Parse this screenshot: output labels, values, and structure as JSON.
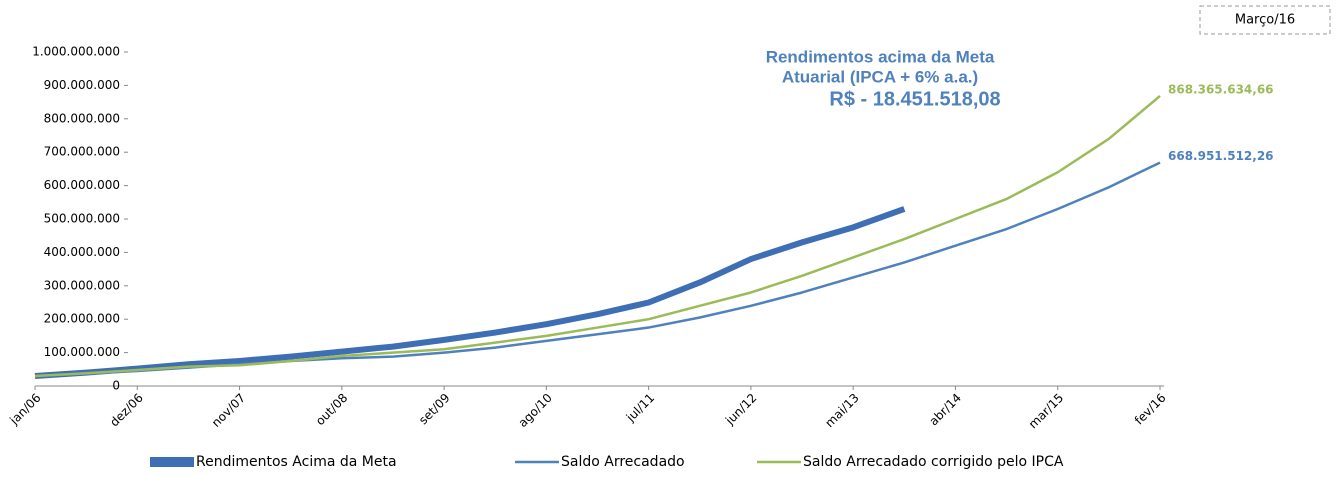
{
  "chart_data": {
    "type": "line",
    "annotations": [
      "Rendimentos acima da Meta",
      "Atuarial (IPCA + 6% a.a.)",
      "R$ - 18.451.518,08"
    ],
    "date_label": "Março/16",
    "categories": [
      "jan/06",
      null,
      "dez/06",
      null,
      "nov/07",
      null,
      "out/08",
      null,
      "set/09",
      null,
      "ago/10",
      null,
      "jul/11",
      null,
      "jun/12",
      null,
      "mai/13",
      null,
      "abr/14",
      null,
      "mar/15",
      null,
      "fev/16"
    ],
    "series": [
      {
        "name": "Rendimentos Acima da Meta",
        "color": "#3e6eb3",
        "values": [
          30000000,
          40000000,
          52000000,
          65000000,
          75000000,
          88000000,
          103000000,
          118000000,
          138000000,
          160000000,
          185000000,
          215000000,
          250000000,
          310000000,
          380000000,
          430000000,
          475000000,
          530000000,
          null,
          null,
          null,
          null,
          null
        ]
      },
      {
        "name": "Saldo Arrecadado",
        "color": "#4f81bd",
        "values": [
          30000000,
          37000000,
          45000000,
          55000000,
          65000000,
          75000000,
          83000000,
          88000000,
          100000000,
          115000000,
          135000000,
          155000000,
          175000000,
          205000000,
          240000000,
          280000000,
          325000000,
          370000000,
          420000000,
          470000000,
          530000000,
          595000000,
          668951512.26
        ],
        "value_labels": [
          null,
          null,
          null,
          null,
          null,
          null,
          null,
          null,
          null,
          null,
          null,
          null,
          null,
          null,
          null,
          null,
          null,
          null,
          null,
          null,
          null,
          null,
          "668.951.512,26"
        ]
      },
      {
        "name": "Saldo Arrecadado corrigido pelo IPCA",
        "color": "#9bbb59",
        "values": [
          30000000,
          38000000,
          48000000,
          58000000,
          62000000,
          75000000,
          90000000,
          100000000,
          110000000,
          130000000,
          150000000,
          175000000,
          200000000,
          240000000,
          280000000,
          330000000,
          385000000,
          440000000,
          500000000,
          560000000,
          640000000,
          740000000,
          868365634.66
        ],
        "value_labels": [
          null,
          null,
          null,
          null,
          null,
          null,
          null,
          null,
          null,
          null,
          null,
          null,
          null,
          null,
          null,
          null,
          null,
          null,
          null,
          null,
          null,
          null,
          "868.365.634,66"
        ]
      }
    ],
    "ylim": [
      0,
      1000000000
    ],
    "yticks": [
      0,
      {
        "value": 100000000,
        "label": "100.000.000"
      },
      {
        "value": 200000000,
        "label": "200.000.000"
      },
      {
        "value": 300000000,
        "label": "300.000.000"
      },
      {
        "value": 400000000,
        "label": "400.000.000"
      },
      {
        "value": 500000000,
        "label": "500.000.000"
      },
      {
        "value": 600000000,
        "label": "600.000.000"
      },
      {
        "value": 700000000,
        "label": "700.000.000"
      },
      {
        "value": 800000000,
        "label": "800.000.000"
      },
      {
        "value": 900000000,
        "label": "900.000.000"
      },
      {
        "value": 1000000000,
        "label": "1.000.000.000"
      }
    ],
    "grid": false,
    "legend": "bottom"
  }
}
